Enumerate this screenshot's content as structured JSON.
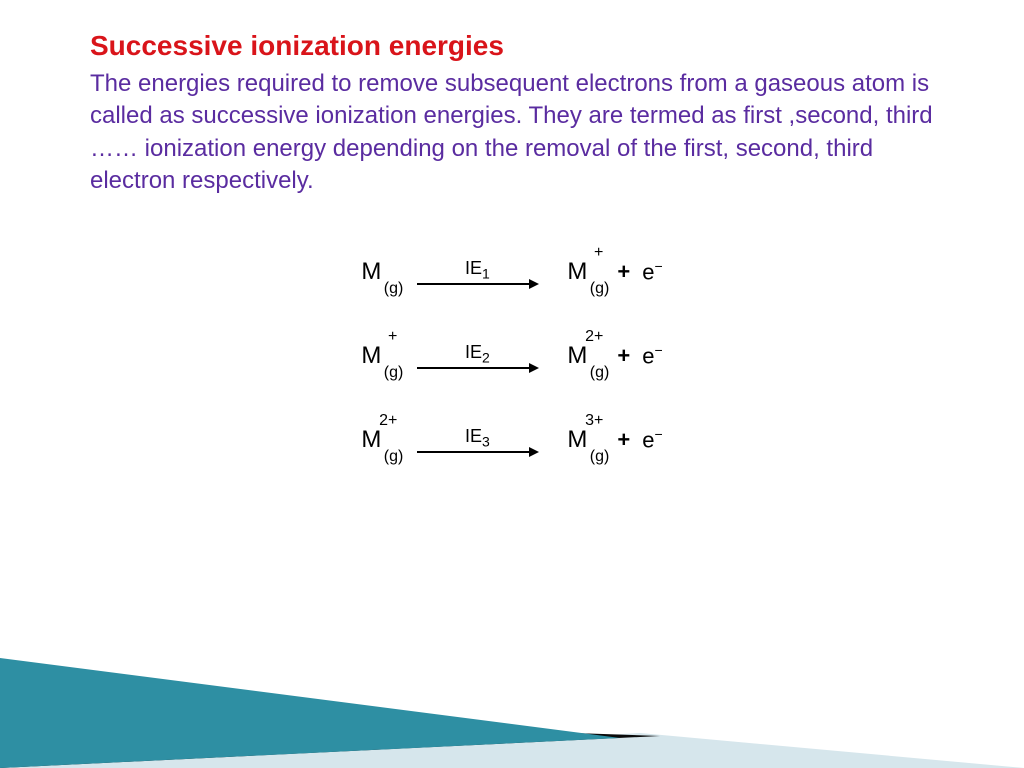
{
  "title": {
    "text": "Successive ionization energies",
    "color": "#D9141A"
  },
  "body": {
    "text": "The energies required to remove subsequent electrons from a gaseous atom is called as successive ionization energies. They are termed as first ,second, third …… ionization energy depending on the removal of the first, second, third electron respectively.",
    "color": "#5A2CA0"
  },
  "equations": [
    {
      "left_charge": "",
      "arrow_label": "IE",
      "arrow_sub": "1",
      "right_charge": "+"
    },
    {
      "left_charge": "+",
      "arrow_label": "IE",
      "arrow_sub": "2",
      "right_charge": "2+"
    },
    {
      "left_charge": "2+",
      "arrow_label": "IE",
      "arrow_sub": "3",
      "right_charge": "3+"
    }
  ],
  "species_base": "M",
  "species_phase": "(g)",
  "plus_sign": "+",
  "electron": "e",
  "electron_sup": "−",
  "decoration": {
    "teal": "#2E8FA3",
    "light": "#D6E6EC",
    "dark": "#0A0A0A"
  }
}
